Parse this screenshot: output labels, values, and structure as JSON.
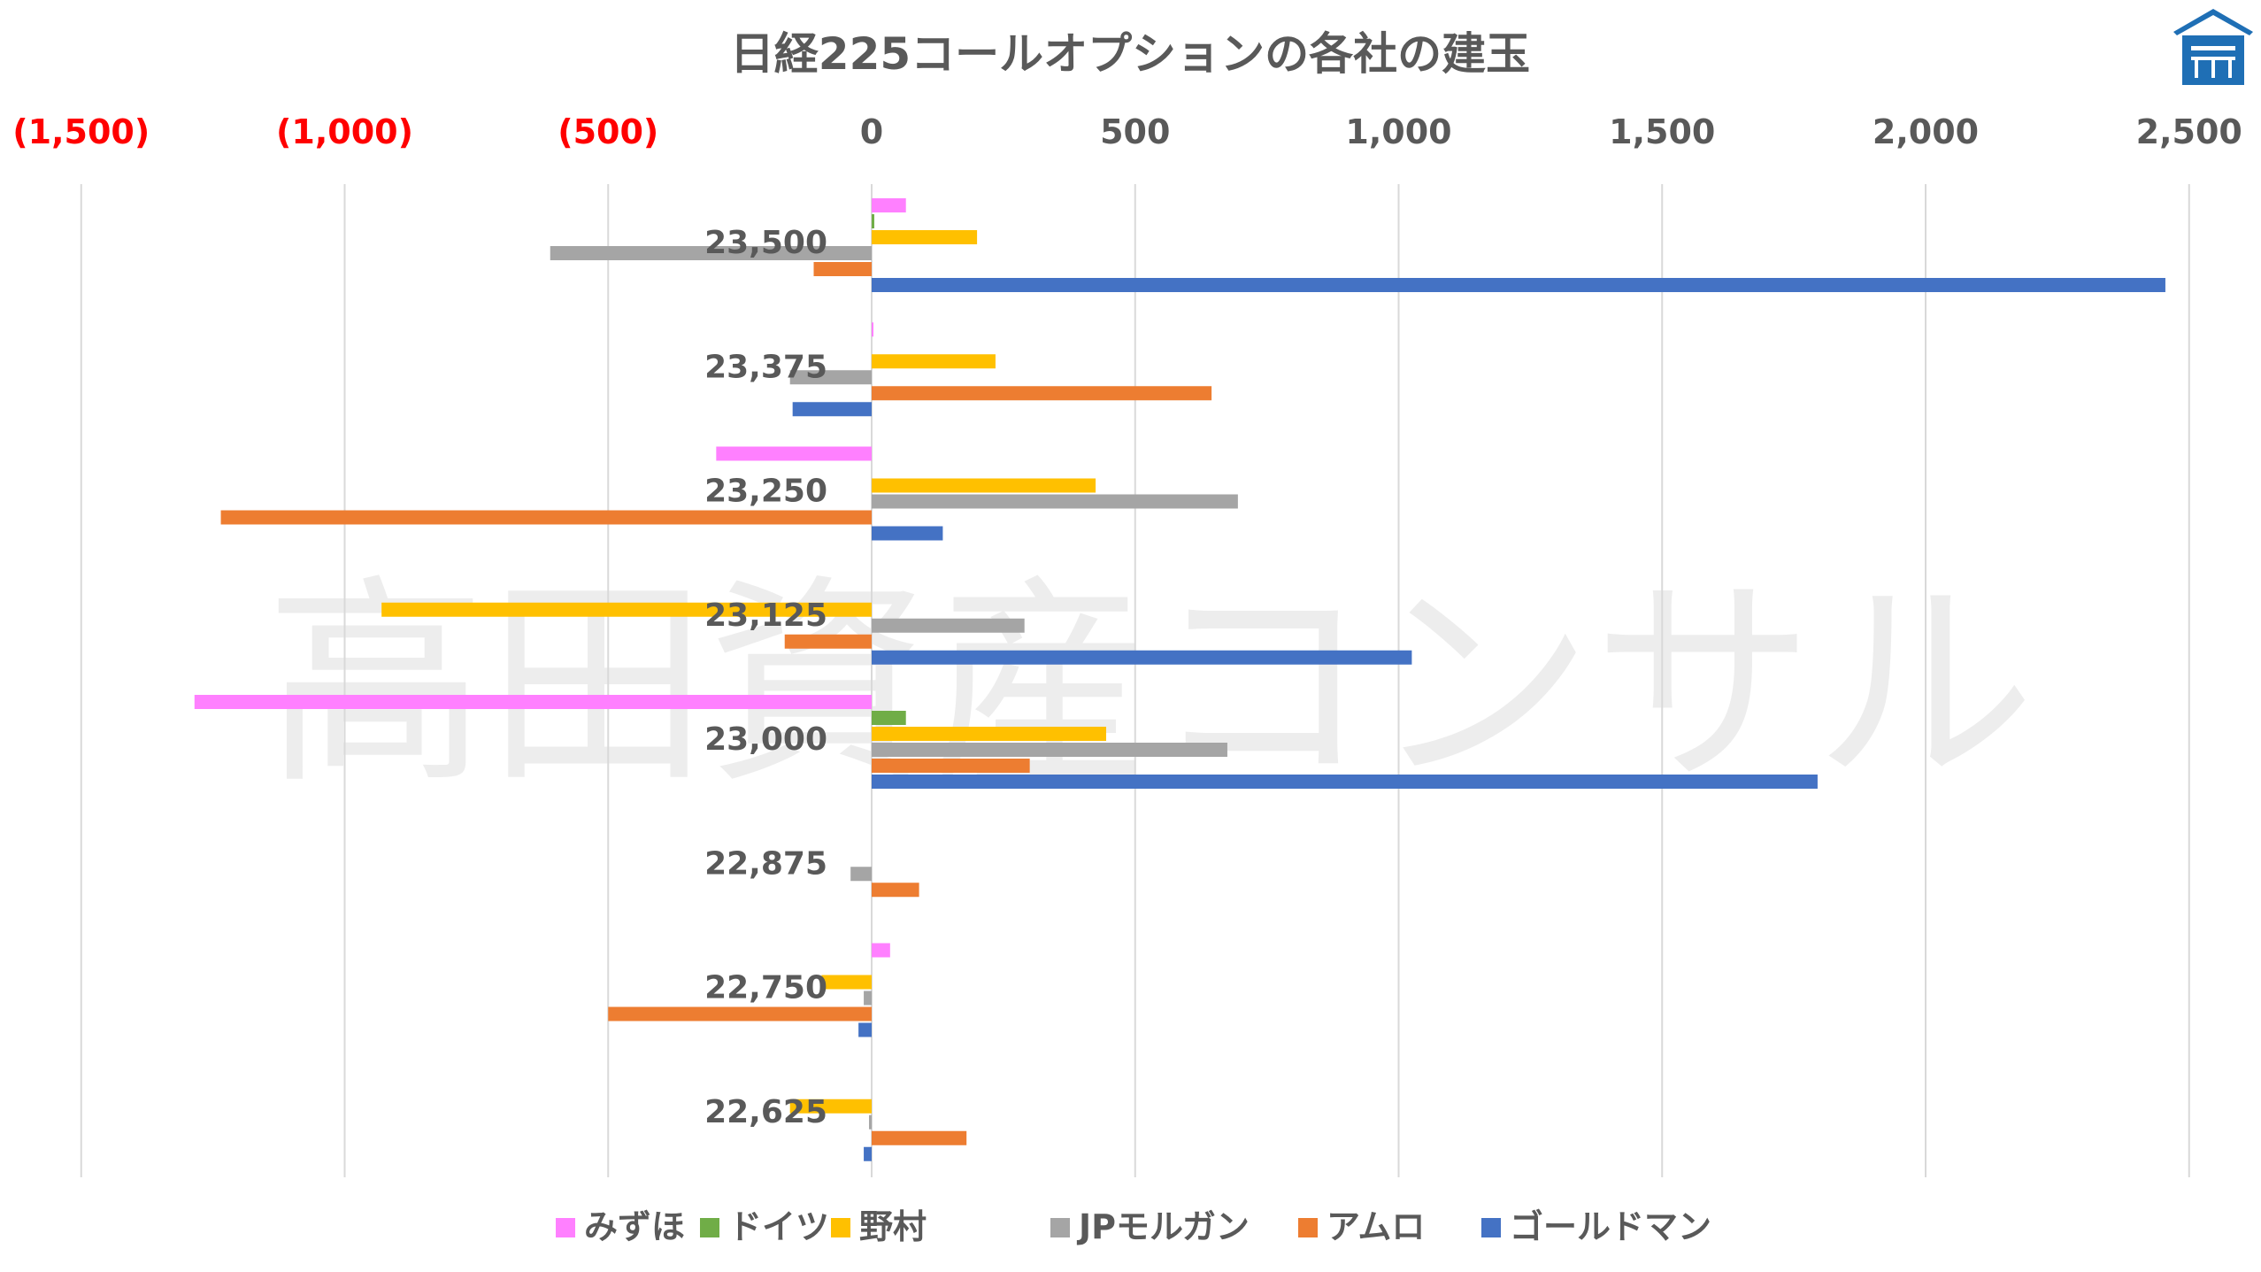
{
  "watermark": "高田資産コンサル",
  "logo": {
    "icon": "house-logo-icon",
    "color": "#1f6fb5"
  },
  "chart_data": {
    "type": "bar",
    "orientation": "horizontal",
    "title": "日経225コールオプションの各社の建玉",
    "xlim": [
      -1500,
      2500
    ],
    "x_ticks": [
      {
        "value": -1500,
        "label": "(1,500)"
      },
      {
        "value": -1000,
        "label": "(1,000)"
      },
      {
        "value": -500,
        "label": "(500)"
      },
      {
        "value": 0,
        "label": "0"
      },
      {
        "value": 500,
        "label": "500"
      },
      {
        "value": 1000,
        "label": "1,000"
      },
      {
        "value": 1500,
        "label": "1,500"
      },
      {
        "value": 2000,
        "label": "2,000"
      },
      {
        "value": 2500,
        "label": "2,500"
      }
    ],
    "negative_tick_color": "#ff0000",
    "grid": true,
    "legend_position": "bottom",
    "categories": [
      "23,500",
      "23,375",
      "23,250",
      "23,125",
      "23,000",
      "22,875",
      "22,750",
      "22,625"
    ],
    "series": [
      {
        "name": "みずほ",
        "color": "#ff80ff",
        "values": [
          65,
          3,
          -295,
          0,
          -1285,
          0,
          35,
          0
        ]
      },
      {
        "name": "ドイツ",
        "color": "#70ad47",
        "values": [
          5,
          0,
          0,
          0,
          65,
          0,
          0,
          0
        ]
      },
      {
        "name": "野村",
        "color": "#ffc000",
        "values": [
          200,
          235,
          425,
          -930,
          445,
          0,
          -95,
          -155
        ]
      },
      {
        "name": "JPモルガン",
        "color": "#a5a5a5",
        "values": [
          -610,
          -155,
          695,
          290,
          675,
          -40,
          -15,
          -5
        ]
      },
      {
        "name": "アムロ",
        "color": "#ed7d31",
        "values": [
          -110,
          645,
          -1235,
          -165,
          300,
          90,
          -500,
          180
        ]
      },
      {
        "name": "ゴールドマン",
        "color": "#4472c4",
        "values": [
          2455,
          -150,
          135,
          1025,
          1795,
          0,
          -25,
          -15
        ]
      }
    ]
  }
}
